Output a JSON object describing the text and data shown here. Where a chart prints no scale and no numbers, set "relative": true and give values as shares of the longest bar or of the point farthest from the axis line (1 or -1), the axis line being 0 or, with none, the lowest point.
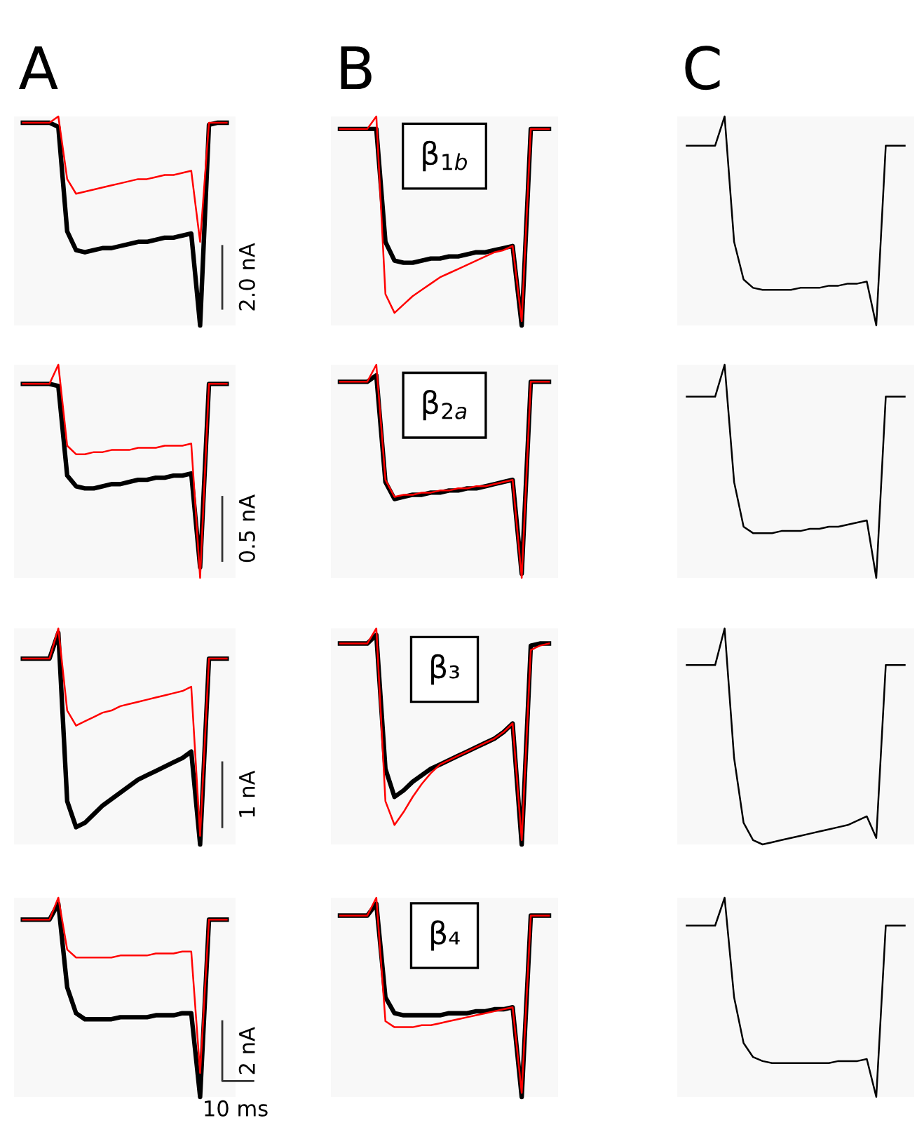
{
  "chart_data": [
    {
      "type": "line",
      "title": "A",
      "relative": true,
      "tick_labels": false,
      "annotations": [
        "2.0 nA"
      ],
      "categories": [
        null,
        null,
        null,
        null,
        null,
        null,
        null,
        null,
        null,
        null,
        null,
        null,
        null,
        null,
        null,
        null,
        null,
        null,
        null,
        null,
        null,
        null,
        null,
        null
      ],
      "series": [
        {
          "color": "#000000",
          "values": [
            0.97,
            0.97,
            0.97,
            0.97,
            0.95,
            0.45,
            0.36,
            0.35,
            0.36,
            0.37,
            0.37,
            0.38,
            0.39,
            0.4,
            0.4,
            0.41,
            0.42,
            0.42,
            0.43,
            0.44,
            0.0,
            0.96,
            0.97,
            0.97
          ]
        },
        {
          "color": "#ff0000",
          "values": [
            0.97,
            0.97,
            0.97,
            0.97,
            1.0,
            0.7,
            0.63,
            0.64,
            0.65,
            0.66,
            0.67,
            0.68,
            0.69,
            0.7,
            0.7,
            0.71,
            0.72,
            0.72,
            0.73,
            0.74,
            0.4,
            0.97,
            0.97,
            0.97
          ]
        }
      ]
    },
    {
      "type": "line",
      "title": "B",
      "relative": true,
      "tick_labels": false,
      "annotations": [
        "β$_{1b}$"
      ],
      "categories": [
        null,
        null,
        null,
        null,
        null,
        null,
        null,
        null,
        null,
        null,
        null,
        null,
        null,
        null,
        null,
        null,
        null,
        null,
        null,
        null,
        null,
        null,
        null,
        null
      ],
      "series": [
        {
          "color": "#000000",
          "values": [
            0.94,
            0.94,
            0.94,
            0.94,
            0.94,
            0.4,
            0.31,
            0.3,
            0.3,
            0.31,
            0.32,
            0.32,
            0.33,
            0.33,
            0.34,
            0.35,
            0.35,
            0.36,
            0.37,
            0.38,
            0.0,
            0.94,
            0.94,
            0.94
          ]
        },
        {
          "color": "#ff0000",
          "values": [
            0.94,
            0.94,
            0.94,
            0.94,
            1.0,
            0.15,
            0.06,
            0.1,
            0.14,
            0.17,
            0.2,
            0.23,
            0.25,
            0.27,
            0.29,
            0.31,
            0.33,
            0.35,
            0.36,
            0.38,
            0.02,
            0.94,
            0.94,
            0.94
          ]
        }
      ]
    },
    {
      "type": "line",
      "title": "C",
      "relative": true,
      "tick_labels": false,
      "categories": [
        null,
        null,
        null,
        null,
        null,
        null,
        null,
        null,
        null,
        null,
        null,
        null,
        null,
        null,
        null,
        null,
        null,
        null,
        null,
        null,
        null,
        null,
        null,
        null
      ],
      "series": [
        {
          "color": "#000000",
          "values": [
            0.86,
            0.86,
            0.86,
            0.86,
            1.0,
            0.4,
            0.22,
            0.18,
            0.17,
            0.17,
            0.17,
            0.17,
            0.18,
            0.18,
            0.18,
            0.19,
            0.19,
            0.2,
            0.2,
            0.21,
            0.0,
            0.86,
            0.86,
            0.86
          ]
        }
      ]
    },
    {
      "type": "line",
      "relative": true,
      "tick_labels": false,
      "annotations": [
        "0.5 nA"
      ],
      "categories": [
        null,
        null,
        null,
        null,
        null,
        null,
        null,
        null,
        null,
        null,
        null,
        null,
        null,
        null,
        null,
        null,
        null,
        null,
        null,
        null,
        null,
        null,
        null,
        null
      ],
      "series": [
        {
          "color": "#000000",
          "values": [
            0.91,
            0.91,
            0.91,
            0.91,
            0.9,
            0.48,
            0.43,
            0.42,
            0.42,
            0.43,
            0.44,
            0.44,
            0.45,
            0.46,
            0.46,
            0.47,
            0.47,
            0.48,
            0.48,
            0.49,
            0.05,
            0.91,
            0.91,
            0.91
          ]
        },
        {
          "color": "#ff0000",
          "values": [
            0.91,
            0.91,
            0.91,
            0.91,
            1.0,
            0.62,
            0.58,
            0.58,
            0.59,
            0.59,
            0.6,
            0.6,
            0.6,
            0.61,
            0.61,
            0.61,
            0.62,
            0.62,
            0.62,
            0.63,
            0.0,
            0.91,
            0.91,
            0.91
          ]
        }
      ]
    },
    {
      "type": "line",
      "relative": true,
      "tick_labels": false,
      "annotations": [
        "β$_{2a}$"
      ],
      "categories": [
        null,
        null,
        null,
        null,
        null,
        null,
        null,
        null,
        null,
        null,
        null,
        null,
        null,
        null,
        null,
        null,
        null,
        null,
        null,
        null,
        null,
        null,
        null,
        null
      ],
      "series": [
        {
          "color": "#000000",
          "values": [
            0.92,
            0.92,
            0.92,
            0.92,
            0.95,
            0.45,
            0.37,
            0.38,
            0.39,
            0.39,
            0.4,
            0.4,
            0.41,
            0.41,
            0.42,
            0.42,
            0.43,
            0.44,
            0.45,
            0.46,
            0.02,
            0.92,
            0.92,
            0.92
          ]
        },
        {
          "color": "#ff0000",
          "values": [
            0.92,
            0.92,
            0.92,
            0.92,
            1.0,
            0.46,
            0.38,
            0.39,
            0.39,
            0.4,
            0.4,
            0.41,
            0.41,
            0.42,
            0.42,
            0.43,
            0.43,
            0.44,
            0.45,
            0.46,
            0.0,
            0.92,
            0.92,
            0.92
          ]
        }
      ]
    },
    {
      "type": "line",
      "relative": true,
      "tick_labels": false,
      "categories": [
        null,
        null,
        null,
        null,
        null,
        null,
        null,
        null,
        null,
        null,
        null,
        null,
        null,
        null,
        null,
        null,
        null,
        null,
        null,
        null,
        null,
        null,
        null,
        null
      ],
      "series": [
        {
          "color": "#000000",
          "values": [
            0.85,
            0.85,
            0.85,
            0.85,
            1.0,
            0.45,
            0.24,
            0.21,
            0.21,
            0.21,
            0.22,
            0.22,
            0.22,
            0.23,
            0.23,
            0.24,
            0.24,
            0.25,
            0.26,
            0.27,
            0.0,
            0.85,
            0.85,
            0.85
          ]
        }
      ]
    },
    {
      "type": "line",
      "relative": true,
      "tick_labels": false,
      "annotations": [
        "1 nA"
      ],
      "categories": [
        null,
        null,
        null,
        null,
        null,
        null,
        null,
        null,
        null,
        null,
        null,
        null,
        null,
        null,
        null,
        null,
        null,
        null,
        null,
        null,
        null,
        null,
        null,
        null
      ],
      "series": [
        {
          "color": "#000000",
          "values": [
            0.86,
            0.86,
            0.86,
            0.86,
            0.98,
            0.2,
            0.08,
            0.1,
            0.14,
            0.18,
            0.21,
            0.24,
            0.27,
            0.3,
            0.32,
            0.34,
            0.36,
            0.38,
            0.4,
            0.43,
            0.0,
            0.86,
            0.86,
            0.86
          ]
        },
        {
          "color": "#ff0000",
          "values": [
            0.86,
            0.86,
            0.86,
            0.86,
            1.0,
            0.62,
            0.55,
            0.57,
            0.59,
            0.61,
            0.62,
            0.64,
            0.65,
            0.66,
            0.67,
            0.68,
            0.69,
            0.7,
            0.71,
            0.73,
            0.04,
            0.86,
            0.86,
            0.86
          ]
        }
      ]
    },
    {
      "type": "line",
      "relative": true,
      "tick_labels": false,
      "annotations": [
        "β₃"
      ],
      "categories": [
        null,
        null,
        null,
        null,
        null,
        null,
        null,
        null,
        null,
        null,
        null,
        null,
        null,
        null,
        null,
        null,
        null,
        null,
        null,
        null,
        null,
        null,
        null,
        null
      ],
      "series": [
        {
          "color": "#000000",
          "values": [
            0.93,
            0.93,
            0.93,
            0.93,
            0.97,
            0.35,
            0.22,
            0.25,
            0.29,
            0.32,
            0.35,
            0.37,
            0.39,
            0.41,
            0.43,
            0.45,
            0.47,
            0.49,
            0.52,
            0.56,
            0.0,
            0.92,
            0.93,
            0.93
          ]
        },
        {
          "color": "#ff0000",
          "values": [
            0.93,
            0.93,
            0.93,
            0.93,
            1.0,
            0.2,
            0.09,
            0.15,
            0.22,
            0.28,
            0.33,
            0.37,
            0.39,
            0.41,
            0.43,
            0.45,
            0.47,
            0.49,
            0.52,
            0.56,
            0.02,
            0.9,
            0.92,
            0.93
          ]
        }
      ]
    },
    {
      "type": "line",
      "relative": true,
      "tick_labels": false,
      "categories": [
        null,
        null,
        null,
        null,
        null,
        null,
        null,
        null,
        null,
        null,
        null,
        null,
        null,
        null,
        null,
        null,
        null,
        null,
        null,
        null,
        null,
        null,
        null,
        null
      ],
      "series": [
        {
          "color": "#000000",
          "values": [
            0.83,
            0.83,
            0.83,
            0.83,
            1.0,
            0.4,
            0.1,
            0.02,
            0.0,
            0.01,
            0.02,
            0.03,
            0.04,
            0.05,
            0.06,
            0.07,
            0.08,
            0.09,
            0.11,
            0.13,
            0.03,
            0.83,
            0.83,
            0.83
          ]
        }
      ]
    },
    {
      "type": "line",
      "relative": true,
      "tick_labels": false,
      "annotations": [
        "2 nA",
        "10 ms"
      ],
      "categories": [
        null,
        null,
        null,
        null,
        null,
        null,
        null,
        null,
        null,
        null,
        null,
        null,
        null,
        null,
        null,
        null,
        null,
        null,
        null,
        null,
        null,
        null,
        null,
        null
      ],
      "series": [
        {
          "color": "#000000",
          "values": [
            0.89,
            0.89,
            0.89,
            0.89,
            0.97,
            0.55,
            0.42,
            0.39,
            0.39,
            0.39,
            0.39,
            0.4,
            0.4,
            0.4,
            0.4,
            0.41,
            0.41,
            0.41,
            0.42,
            0.42,
            0.0,
            0.89,
            0.89,
            0.89
          ]
        },
        {
          "color": "#ff0000",
          "values": [
            0.89,
            0.89,
            0.89,
            0.89,
            1.0,
            0.74,
            0.7,
            0.7,
            0.7,
            0.7,
            0.7,
            0.71,
            0.71,
            0.71,
            0.71,
            0.72,
            0.72,
            0.72,
            0.73,
            0.73,
            0.12,
            0.89,
            0.89,
            0.89
          ]
        }
      ]
    },
    {
      "type": "line",
      "relative": true,
      "tick_labels": false,
      "annotations": [
        "β₄"
      ],
      "categories": [
        null,
        null,
        null,
        null,
        null,
        null,
        null,
        null,
        null,
        null,
        null,
        null,
        null,
        null,
        null,
        null,
        null,
        null,
        null,
        null,
        null,
        null,
        null,
        null
      ],
      "series": [
        {
          "color": "#000000",
          "values": [
            0.91,
            0.91,
            0.91,
            0.91,
            0.97,
            0.5,
            0.42,
            0.41,
            0.41,
            0.41,
            0.41,
            0.41,
            0.42,
            0.42,
            0.42,
            0.43,
            0.43,
            0.44,
            0.44,
            0.45,
            0.0,
            0.91,
            0.91,
            0.91
          ]
        },
        {
          "color": "#ff0000",
          "values": [
            0.91,
            0.91,
            0.91,
            0.91,
            1.0,
            0.38,
            0.35,
            0.35,
            0.35,
            0.36,
            0.36,
            0.37,
            0.38,
            0.39,
            0.4,
            0.41,
            0.42,
            0.43,
            0.44,
            0.45,
            0.02,
            0.91,
            0.91,
            0.91
          ]
        }
      ]
    },
    {
      "type": "line",
      "relative": true,
      "tick_labels": false,
      "categories": [
        null,
        null,
        null,
        null,
        null,
        null,
        null,
        null,
        null,
        null,
        null,
        null,
        null,
        null,
        null,
        null,
        null,
        null,
        null,
        null,
        null,
        null,
        null,
        null
      ],
      "series": [
        {
          "color": "#000000",
          "values": [
            0.86,
            0.86,
            0.86,
            0.86,
            1.0,
            0.5,
            0.27,
            0.2,
            0.18,
            0.17,
            0.17,
            0.17,
            0.17,
            0.17,
            0.17,
            0.17,
            0.18,
            0.18,
            0.18,
            0.19,
            0.0,
            0.86,
            0.86,
            0.86
          ]
        }
      ]
    }
  ]
}
